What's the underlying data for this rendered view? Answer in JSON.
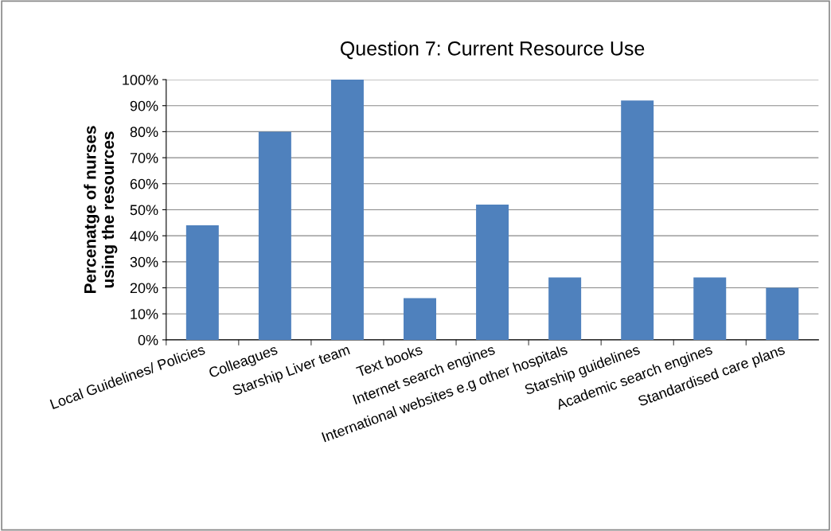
{
  "chart_data": {
    "type": "bar",
    "title": "Question 7: Current Resource Use",
    "ylabel": "Percenatge of nurses\nusing the resources",
    "categories": [
      "Local Guidelines/ Policies",
      "Colleagues",
      "Starship Liver team",
      "Text books",
      "Internet search engines",
      "International websites e.g other hospitals",
      "Starship guidelines",
      "Academic search engines",
      "Standardised care plans"
    ],
    "values": [
      44,
      80,
      100,
      16,
      52,
      24,
      92,
      24,
      20
    ],
    "color": "#4f81bd",
    "ylim": [
      0,
      100
    ],
    "yticks": [
      {
        "value": 0,
        "label": "0%"
      },
      {
        "value": 10,
        "label": "10%"
      },
      {
        "value": 20,
        "label": "20%"
      },
      {
        "value": 30,
        "label": "30%"
      },
      {
        "value": 40,
        "label": "40%"
      },
      {
        "value": 50,
        "label": "50%"
      },
      {
        "value": 60,
        "label": "60%"
      },
      {
        "value": 70,
        "label": "70%"
      },
      {
        "value": 80,
        "label": "80%"
      },
      {
        "value": 90,
        "label": "90%"
      },
      {
        "value": 100,
        "label": "100%"
      }
    ],
    "grid": "y"
  }
}
